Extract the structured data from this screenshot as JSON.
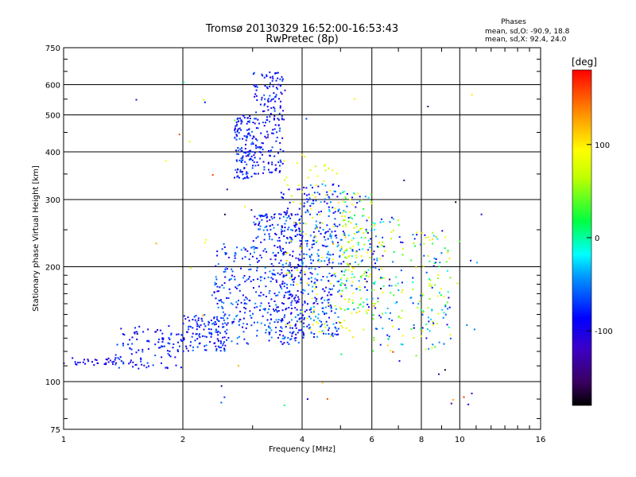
{
  "chart_data": {
    "type": "scatter",
    "title": "Tromsø 20130329 16:52:00-16:53:43",
    "subtitle": "RwPretec (8p)",
    "xlabel": "Frequency [MHz]",
    "ylabel": "Stationary phase Virtual Height [km]",
    "x_scale": "log",
    "y_scale": "log",
    "xlim": [
      1,
      16
    ],
    "ylim": [
      75,
      750
    ],
    "x_ticks": [
      1,
      2,
      4,
      6,
      8,
      10,
      16
    ],
    "y_ticks": [
      75,
      100,
      200,
      300,
      400,
      500,
      600,
      750
    ],
    "grid": true,
    "legend": {
      "title": "Phases",
      "line1": "mean, sd,O: -90.9, 18.8",
      "line2": "mean, sd,X:  92.4, 24.0",
      "placement": "top-right"
    },
    "colorbar": {
      "label": "[deg]",
      "range": [
        -180,
        180
      ],
      "ticks": [
        100,
        0,
        -100
      ],
      "colormap": "rainbow"
    },
    "clusters": [
      {
        "x": [
          1.0,
          1.35
        ],
        "y": [
          110,
          116
        ],
        "phase": [
          -110,
          -80
        ],
        "n": 30
      },
      {
        "x": [
          1.35,
          2.0
        ],
        "y": [
          108,
          140
        ],
        "phase": [
          -110,
          -60
        ],
        "n": 110
      },
      {
        "x": [
          2.0,
          2.6
        ],
        "y": [
          120,
          150
        ],
        "phase": [
          -110,
          -50
        ],
        "n": 120
      },
      {
        "x": [
          2.4,
          3.0
        ],
        "y": [
          125,
          230
        ],
        "phase": [
          -110,
          -40
        ],
        "n": 150
      },
      {
        "x": [
          2.7,
          3.0
        ],
        "y": [
          340,
          500
        ],
        "phase": [
          -110,
          -50
        ],
        "n": 130
      },
      {
        "x": [
          3.0,
          3.6
        ],
        "y": [
          350,
          650
        ],
        "phase": [
          -110,
          -60
        ],
        "n": 190
      },
      {
        "x": [
          3.0,
          4.0
        ],
        "y": [
          125,
          280
        ],
        "phase": [
          -110,
          -40
        ],
        "n": 340
      },
      {
        "x": [
          3.5,
          4.0
        ],
        "y": [
          130,
          320
        ],
        "phase": [
          -110,
          -80
        ],
        "n": 90
      },
      {
        "x": [
          4.0,
          5.0
        ],
        "y": [
          130,
          330
        ],
        "phase": [
          -110,
          -30
        ],
        "n": 300
      },
      {
        "x": [
          3.6,
          5.5
        ],
        "y": [
          130,
          400
        ],
        "phase": [
          60,
          110
        ],
        "n": 120
      },
      {
        "x": [
          5.0,
          6.0
        ],
        "y": [
          150,
          320
        ],
        "phase": [
          -110,
          110
        ],
        "n": 170
      },
      {
        "x": [
          6.0,
          7.2
        ],
        "y": [
          120,
          270
        ],
        "phase": [
          -110,
          110
        ],
        "n": 110
      },
      {
        "x": [
          7.5,
          9.5
        ],
        "y": [
          120,
          250
        ],
        "phase": [
          -110,
          110
        ],
        "n": 120
      },
      {
        "x": [
          1.5,
          12.0
        ],
        "y": [
          85,
          620
        ],
        "phase": [
          -180,
          180
        ],
        "n": 60
      }
    ]
  }
}
